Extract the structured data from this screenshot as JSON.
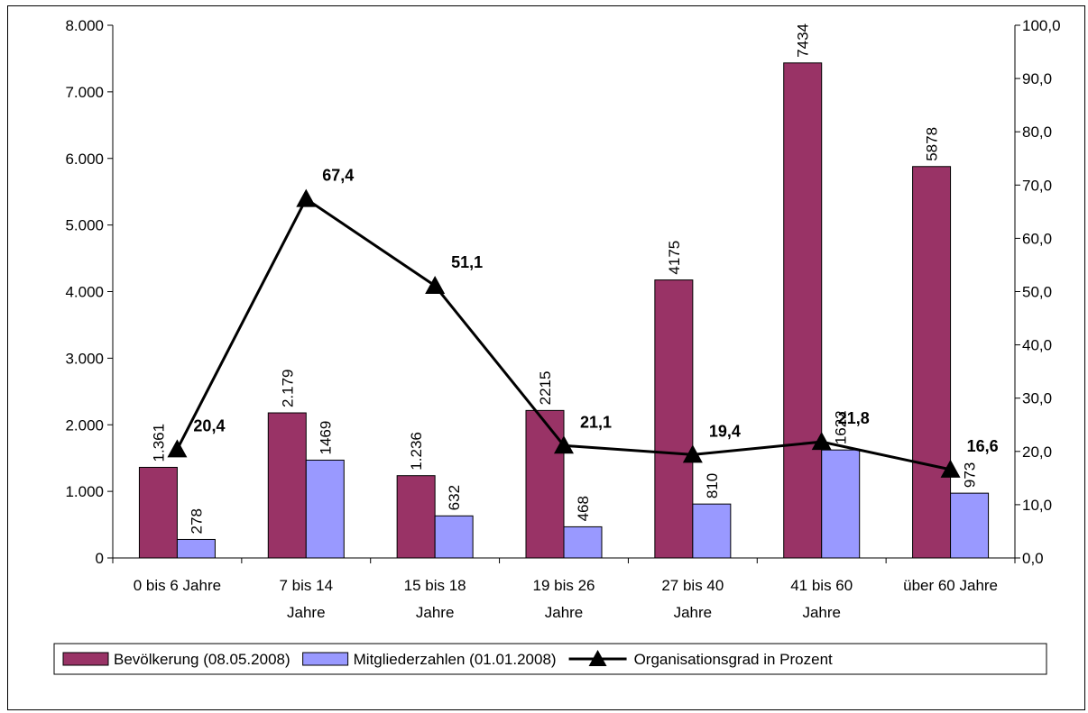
{
  "chart_data": {
    "type": "bar",
    "categories": [
      [
        "0 bis 6 Jahre"
      ],
      [
        "7 bis 14",
        "Jahre"
      ],
      [
        "15 bis 18",
        "Jahre"
      ],
      [
        "19 bis 26",
        "Jahre"
      ],
      [
        "27 bis 40",
        "Jahre"
      ],
      [
        "41 bis 60",
        "Jahre"
      ],
      [
        "über 60 Jahre"
      ]
    ],
    "y_left": {
      "min": 0,
      "max": 8000,
      "step": 1000,
      "tick_labels": [
        "0",
        "1.000",
        "2.000",
        "3.000",
        "4.000",
        "5.000",
        "6.000",
        "7.000",
        "8.000"
      ]
    },
    "y_right": {
      "min": 0,
      "max": 100,
      "step": 10,
      "tick_labels": [
        "0,0",
        "10,0",
        "20,0",
        "30,0",
        "40,0",
        "50,0",
        "60,0",
        "70,0",
        "80,0",
        "90,0",
        "100,0"
      ]
    },
    "series": [
      {
        "name": "Bevölkerung (08.05.2008)",
        "kind": "bar",
        "axis": "left",
        "color": "#993366",
        "values": [
          1361,
          2179,
          1236,
          2215,
          4175,
          7434,
          5878
        ],
        "labels": [
          "1.361",
          "2.179",
          "1.236",
          "2215",
          "4175",
          "7434",
          "5878"
        ]
      },
      {
        "name": "Mitgliederzahlen (01.01.2008)",
        "kind": "bar",
        "axis": "left",
        "color": "#9999FF",
        "values": [
          278,
          1469,
          632,
          468,
          810,
          1622,
          973
        ],
        "labels": [
          "278",
          "1469",
          "632",
          "468",
          "810",
          "1622",
          "973"
        ]
      },
      {
        "name": "Organisationsgrad in Prozent",
        "kind": "line",
        "axis": "right",
        "color": "#000000",
        "marker": "triangle",
        "values": [
          20.4,
          67.4,
          51.1,
          21.1,
          19.4,
          21.8,
          16.6
        ],
        "labels": [
          "20,4",
          "67,4",
          "51,1",
          "21,1",
          "19,4",
          "21,8",
          "16,6"
        ]
      }
    ],
    "legend_position": "bottom",
    "grid": false
  }
}
